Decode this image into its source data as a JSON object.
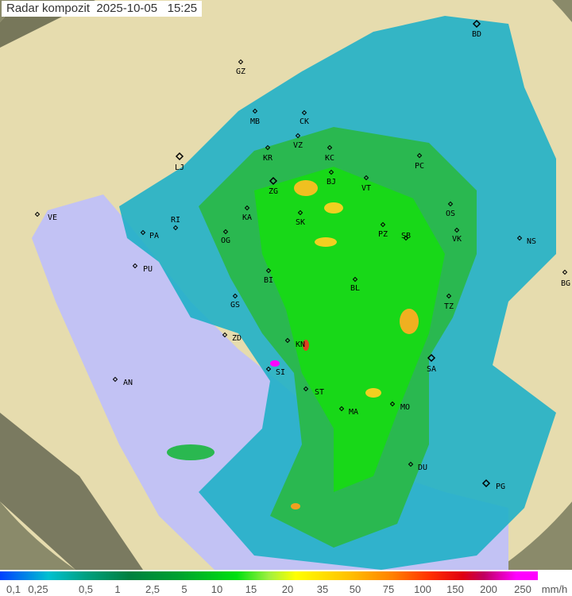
{
  "title": "Radar kompozit  2025-10-05   15:25",
  "legend": {
    "ticks": [
      "0,1",
      "0,25",
      "0,5",
      "1",
      "2,5",
      "5",
      "10",
      "15",
      "20",
      "35",
      "50",
      "75",
      "100",
      "150",
      "200",
      "250"
    ],
    "unit": "mm/h",
    "colors": [
      "#0040ff",
      "#00c0d0",
      "#008040",
      "#00e010",
      "#ffff00",
      "#ff8000",
      "#e00010",
      "#ff00ff"
    ]
  },
  "cities": [
    {
      "code": "BD"
    },
    {
      "code": "GZ"
    },
    {
      "code": "MB"
    },
    {
      "code": "CK"
    },
    {
      "code": "VZ"
    },
    {
      "code": "KR"
    },
    {
      "code": "KC"
    },
    {
      "code": "PC"
    },
    {
      "code": "LJ"
    },
    {
      "code": "ZG"
    },
    {
      "code": "BJ"
    },
    {
      "code": "VT"
    },
    {
      "code": "OS"
    },
    {
      "code": "KA"
    },
    {
      "code": "SK"
    },
    {
      "code": "RI"
    },
    {
      "code": "VE"
    },
    {
      "code": "PA"
    },
    {
      "code": "OG"
    },
    {
      "code": "PZ"
    },
    {
      "code": "SB"
    },
    {
      "code": "VK"
    },
    {
      "code": "NS"
    },
    {
      "code": "PU"
    },
    {
      "code": "BI"
    },
    {
      "code": "BL"
    },
    {
      "code": "BG"
    },
    {
      "code": "GS"
    },
    {
      "code": "TZ"
    },
    {
      "code": "ZD"
    },
    {
      "code": "KN"
    },
    {
      "code": "SI"
    },
    {
      "code": "SA"
    },
    {
      "code": "AN"
    },
    {
      "code": "ST"
    },
    {
      "code": "MA"
    },
    {
      "code": "MO"
    },
    {
      "code": "DU"
    },
    {
      "code": "PG"
    }
  ]
}
